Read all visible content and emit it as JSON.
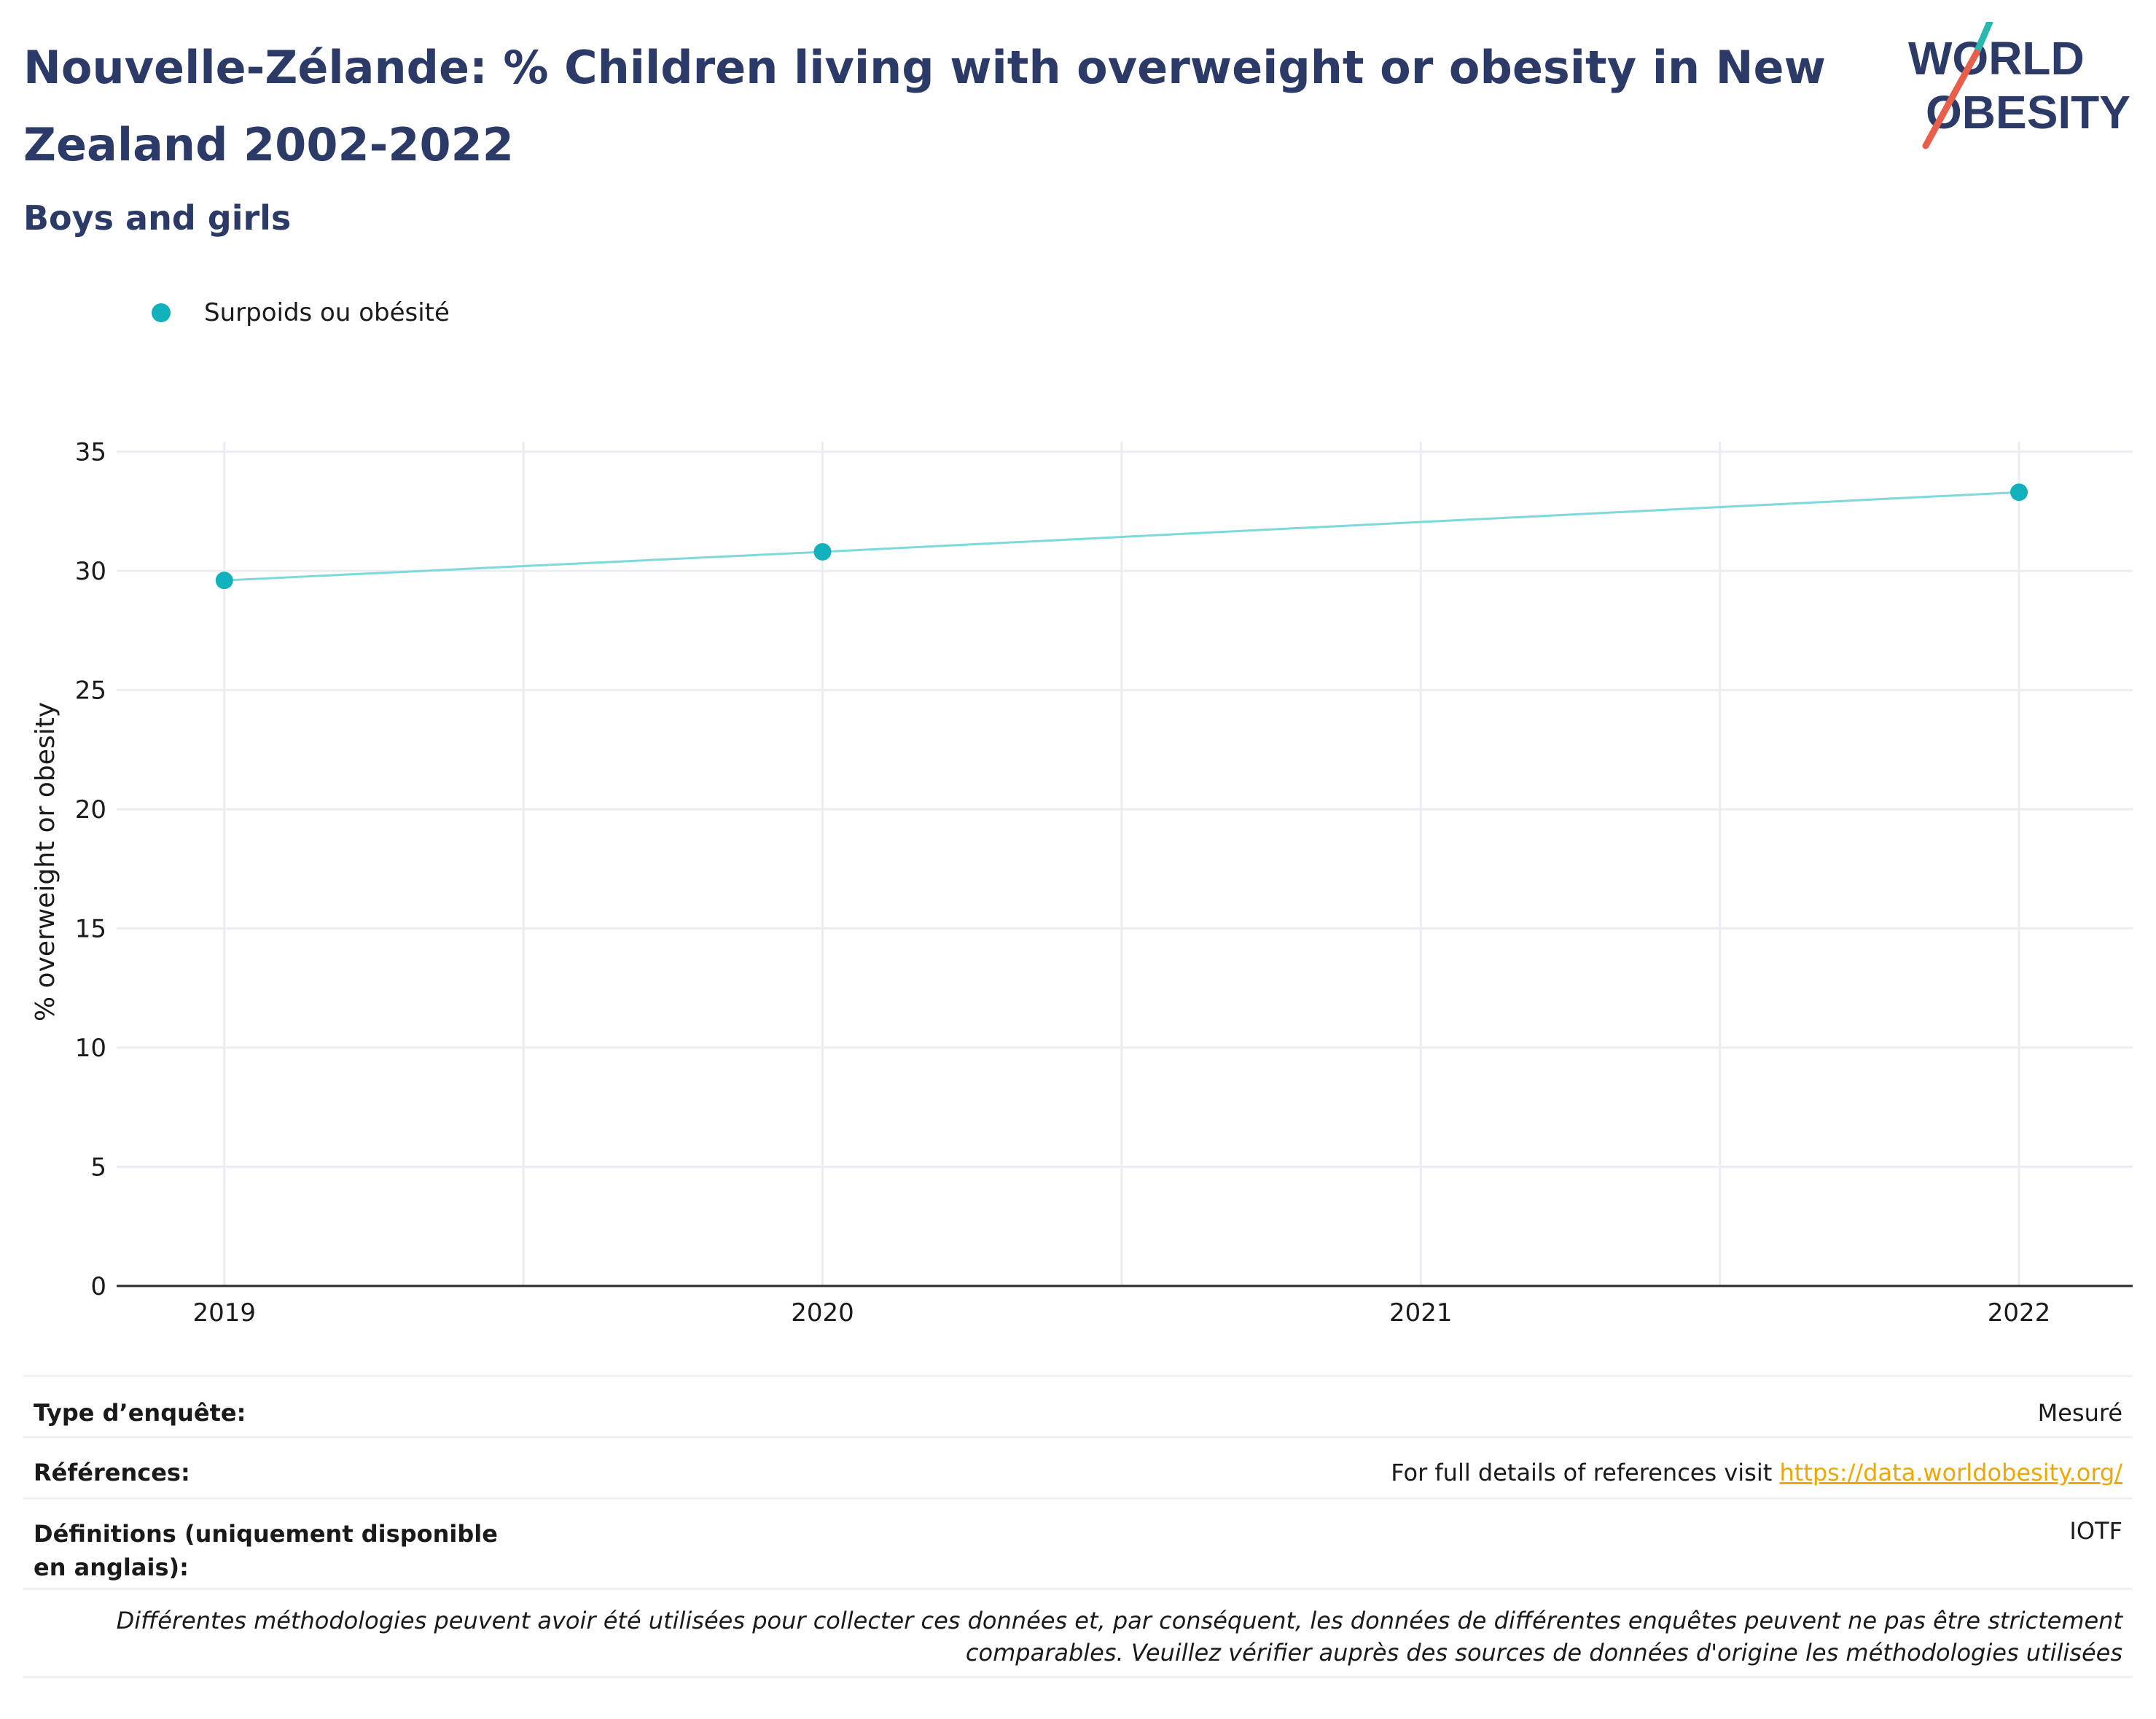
{
  "header": {
    "title": "Nouvelle-Zélande: % Children living with overweight or obesity in New Zealand 2002-2022",
    "subtitle": "Boys and girls"
  },
  "logo": {
    "line1": "WORLD",
    "line2": "OBESITY",
    "color_text": "#2b3a67",
    "color_slash_top": "#2ab7b0",
    "color_slash_bottom": "#e8604c"
  },
  "legend": {
    "label": "Surpoids ou obésité",
    "color": "#11b2bb"
  },
  "chart_data": {
    "type": "line",
    "x": [
      2019,
      2020,
      2022
    ],
    "series": [
      {
        "name": "Surpoids ou obésité",
        "values": [
          29.6,
          30.8,
          33.3
        ],
        "color": "#11b2bb",
        "line_color": "#7dd9dc"
      }
    ],
    "xticks": [
      "2019",
      "2020",
      "2021",
      "2022"
    ],
    "yticks": [
      "0",
      "5",
      "10",
      "15",
      "20",
      "25",
      "30",
      "35"
    ],
    "xlim": [
      2018.82,
      2022.19
    ],
    "ylim": [
      0,
      35.6
    ],
    "ylabel": "% overweight or obesity",
    "xlabel": "",
    "grid": true,
    "legend_position": "top-left"
  },
  "info": {
    "survey_type_label": "Type d’enquête:",
    "survey_type_value": "Mesuré",
    "references_label": "Références:",
    "references_text": "For full details of references visit ",
    "references_link": "https://data.worldobesity.org/",
    "definitions_label": "Définitions (uniquement disponible en anglais):",
    "definitions_value": "IOTF",
    "note_line1": "Différentes méthodologies peuvent avoir été utilisées pour collecter ces données et, par conséquent, les données de différentes enquêtes peuvent ne pas être strictement",
    "note_line2": "comparables. Veuillez vérifier auprès des sources de données d'origine les méthodologies utilisées"
  }
}
